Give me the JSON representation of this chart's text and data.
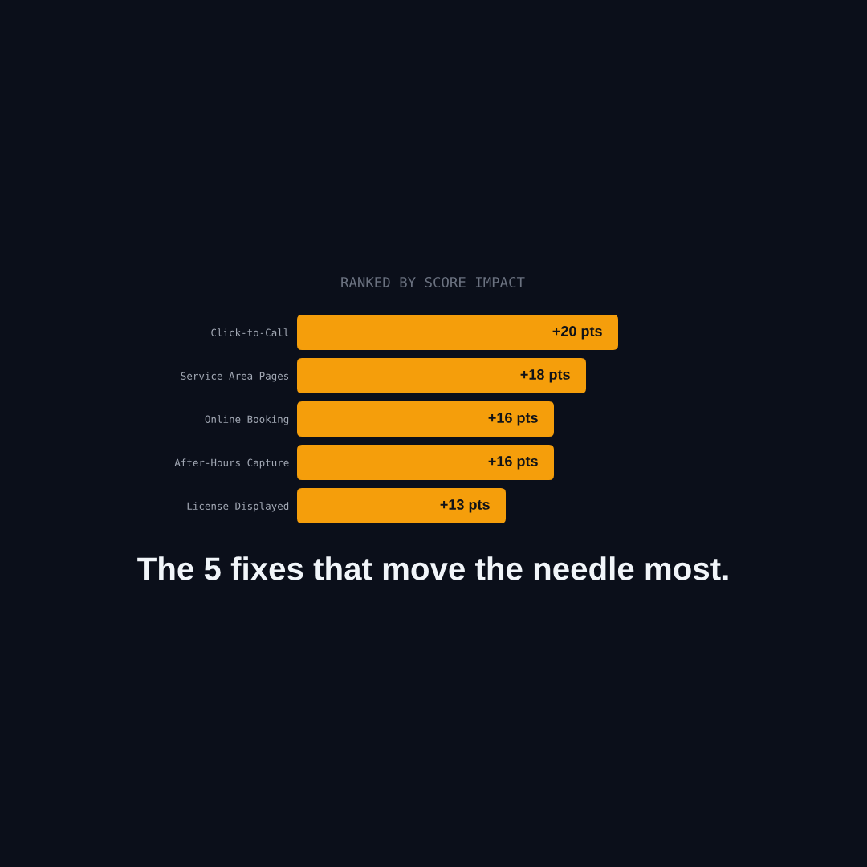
{
  "chart_data": {
    "type": "bar",
    "orientation": "horizontal",
    "title": "The 5 fixes that move the needle most.",
    "subtitle": "RANKED BY SCORE IMPACT",
    "categories": [
      "Click-to-Call",
      "Service Area Pages",
      "Online Booking",
      "After-Hours Capture",
      "License Displayed"
    ],
    "values": [
      20,
      18,
      16,
      16,
      13
    ],
    "value_labels": [
      "+20 pts",
      "+18 pts",
      "+16 pts",
      "+16 pts",
      "+13 pts"
    ],
    "color": "#f59e0b",
    "tick_labels": "y"
  }
}
